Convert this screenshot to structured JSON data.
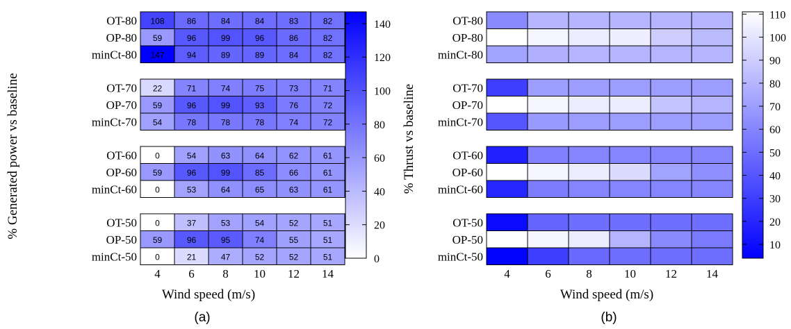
{
  "chart_data": [
    {
      "type": "heatmap",
      "caption": "(a)",
      "xlabel": "Wind speed (m/s)",
      "ylabel": "% Generated power vs baseline",
      "x": [
        4,
        6,
        8,
        10,
        12,
        14
      ],
      "x_tick_labels": [
        "4",
        "6",
        "8",
        "10",
        "12",
        "14"
      ],
      "show_values": true,
      "colormap": {
        "low": "#ffffff",
        "high": "#0000ff"
      },
      "clim": [
        0,
        147
      ],
      "colorbar_ticks": [
        0,
        20,
        40,
        60,
        80,
        100,
        120,
        140
      ],
      "colorbar_position": "right",
      "groups": [
        {
          "rows": [
            {
              "label": "OT-80",
              "values": [
                108,
                86,
                84,
                84,
                83,
                82
              ]
            },
            {
              "label": "OP-80",
              "values": [
                59,
                96,
                99,
                96,
                86,
                82
              ]
            },
            {
              "label": "minCt-80",
              "values": [
                147,
                94,
                89,
                89,
                84,
                82
              ]
            }
          ]
        },
        {
          "rows": [
            {
              "label": "OT-70",
              "values": [
                22,
                71,
                74,
                75,
                73,
                71
              ]
            },
            {
              "label": "OP-70",
              "values": [
                59,
                96,
                99,
                93,
                76,
                72
              ]
            },
            {
              "label": "minCt-70",
              "values": [
                54,
                78,
                78,
                78,
                74,
                72
              ]
            }
          ]
        },
        {
          "rows": [
            {
              "label": "OT-60",
              "values": [
                0,
                54,
                63,
                64,
                62,
                61
              ]
            },
            {
              "label": "OP-60",
              "values": [
                59,
                96,
                99,
                85,
                66,
                61
              ]
            },
            {
              "label": "minCt-60",
              "values": [
                0,
                53,
                64,
                65,
                63,
                61
              ]
            }
          ]
        },
        {
          "rows": [
            {
              "label": "OT-50",
              "values": [
                0,
                37,
                53,
                54,
                52,
                51
              ]
            },
            {
              "label": "OP-50",
              "values": [
                59,
                96,
                95,
                74,
                55,
                51
              ]
            },
            {
              "label": "minCt-50",
              "values": [
                0,
                21,
                47,
                52,
                52,
                51
              ]
            }
          ]
        }
      ]
    },
    {
      "type": "heatmap",
      "caption": "(b)",
      "xlabel": "Wind speed (m/s)",
      "ylabel": "% Thrust vs baseline",
      "x": [
        4,
        6,
        8,
        10,
        12,
        14
      ],
      "x_tick_labels": [
        "4",
        "6",
        "8",
        "10",
        "12",
        "14"
      ],
      "show_values": false,
      "colormap": {
        "low": "#0000ff",
        "high": "#ffffff"
      },
      "clim": [
        4,
        111
      ],
      "colorbar_ticks": [
        10,
        20,
        30,
        40,
        50,
        60,
        70,
        80,
        90,
        100,
        110
      ],
      "colorbar_position": "right",
      "groups": [
        {
          "rows": [
            {
              "label": "OT-80",
              "values": [
                62,
                80,
                80,
                80,
                80,
                80
              ]
            },
            {
              "label": "OP-80",
              "values": [
                111,
                107,
                103,
                104,
                90,
                82
              ]
            },
            {
              "label": "minCt-80",
              "values": [
                72,
                78,
                80,
                80,
                80,
                80
              ]
            }
          ]
        },
        {
          "rows": [
            {
              "label": "OT-70",
              "values": [
                30,
                70,
                70,
                70,
                70,
                70
              ]
            },
            {
              "label": "OP-70",
              "values": [
                111,
                107,
                103,
                103,
                86,
                80
              ]
            },
            {
              "label": "minCt-70",
              "values": [
                40,
                68,
                70,
                70,
                70,
                70
              ]
            }
          ]
        },
        {
          "rows": [
            {
              "label": "OT-60",
              "values": [
                18,
                58,
                60,
                60,
                60,
                60
              ]
            },
            {
              "label": "OP-60",
              "values": [
                111,
                107,
                103,
                96,
                72,
                64
              ]
            },
            {
              "label": "minCt-60",
              "values": [
                20,
                56,
                60,
                60,
                60,
                60
              ]
            }
          ]
        },
        {
          "rows": [
            {
              "label": "OT-50",
              "values": [
                8,
                46,
                50,
                50,
                50,
                50
              ]
            },
            {
              "label": "OP-50",
              "values": [
                111,
                107,
                103,
                80,
                62,
                55
              ]
            },
            {
              "label": "minCt-50",
              "values": [
                5,
                30,
                48,
                50,
                50,
                50
              ]
            }
          ]
        }
      ]
    }
  ]
}
